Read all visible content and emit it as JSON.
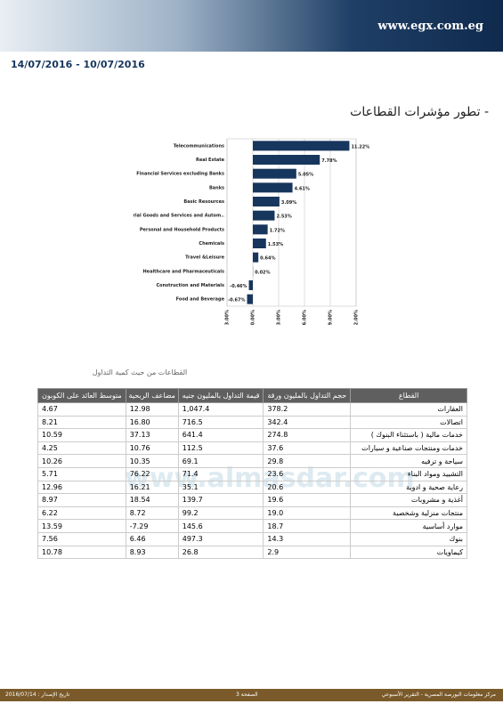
{
  "header": {
    "logo": "www.egx.com.eg",
    "date_range": "14/07/2016 - 10/07/2016"
  },
  "section_title": "- تطور مؤشرات القطاعات",
  "chart_data": {
    "type": "bar",
    "horizontal": true,
    "categories": [
      "Telecommunications",
      "Real Estate",
      "Financial Services excluding Banks",
      "Banks",
      "Basic Resources",
      "Industrial Goods and Services and Autom..",
      "Personal and Household Products",
      "Chemicals",
      "Travel &Leisure",
      "Healthcare and Pharmaceuticals",
      "Construction and Materials",
      "Food and Beverage"
    ],
    "values": [
      11.22,
      7.78,
      5.05,
      4.61,
      3.09,
      2.53,
      1.72,
      1.53,
      0.64,
      0.02,
      -0.46,
      -0.67
    ],
    "value_labels": [
      "11.22%",
      "7.78%",
      "5.05%",
      "4.61%",
      "3.09%",
      "2.53%",
      "1.72%",
      "1.53%",
      "0.64%",
      "0.02%",
      "-0.46%",
      "-0.67%"
    ],
    "color": "#17365d",
    "xlim": [
      -3,
      12
    ],
    "xticks": [
      {
        "value": -3,
        "label": "-3.00%"
      },
      {
        "value": 0,
        "label": "0.00%"
      },
      {
        "value": 3,
        "label": "3.00%"
      },
      {
        "value": 6,
        "label": "6.00%"
      },
      {
        "value": 9,
        "label": "9.00%"
      },
      {
        "value": 12,
        "label": "12.00%"
      }
    ],
    "grid": true
  },
  "table": {
    "caption": "القطاعات من حيث كمية التداول",
    "columns": [
      "القطاع",
      "حجم التداول بالمليون ورقة",
      "قيمة التداول بالمليون جنيه",
      "مضاعف الربحية",
      "متوسط العائد على الكوبون"
    ],
    "rows": [
      [
        "العقارات",
        "378.2",
        "1,047.4",
        "12.98",
        "4.67"
      ],
      [
        "اتصالات",
        "342.4",
        "716.5",
        "16.80",
        "8.21"
      ],
      [
        "خدمات مالية ( باستثناء البنوك )",
        "274.8",
        "641.4",
        "37.13",
        "10.59"
      ],
      [
        "خدمات ومنتجات صناعية و سيارات",
        "37.6",
        "112.5",
        "10.76",
        "4.25"
      ],
      [
        "سياحة و ترفيه",
        "29.8",
        "69.1",
        "10.35",
        "10.26"
      ],
      [
        "التشييد ومواد البناء",
        "23.6",
        "71.4",
        "76.22",
        "5.71"
      ],
      [
        "رعاية صحية و ادوية",
        "20.6",
        "35.1",
        "16.21",
        "12.96"
      ],
      [
        "أغذية و مشروبات",
        "19.6",
        "139.7",
        "18.54",
        "8.97"
      ],
      [
        "منتجات منزلية وشخصية",
        "19.0",
        "99.2",
        "8.72",
        "6.22"
      ],
      [
        "موارد أساسية",
        "18.7",
        "145.6",
        "7.29-",
        "13.59"
      ],
      [
        "بنوك",
        "14.3",
        "497.3",
        "6.46",
        "7.56"
      ],
      [
        "كيماويات",
        "2.9",
        "26.8",
        "8.93",
        "10.78"
      ]
    ]
  },
  "watermark": "www.almasdar.com",
  "footer": {
    "publisher": "مركز معلومات البورصة المصرية - التقرير الأسبوعي",
    "page": "الصفحة 3",
    "issue_date": "تاريخ الإصدار : 2016/07/14"
  }
}
